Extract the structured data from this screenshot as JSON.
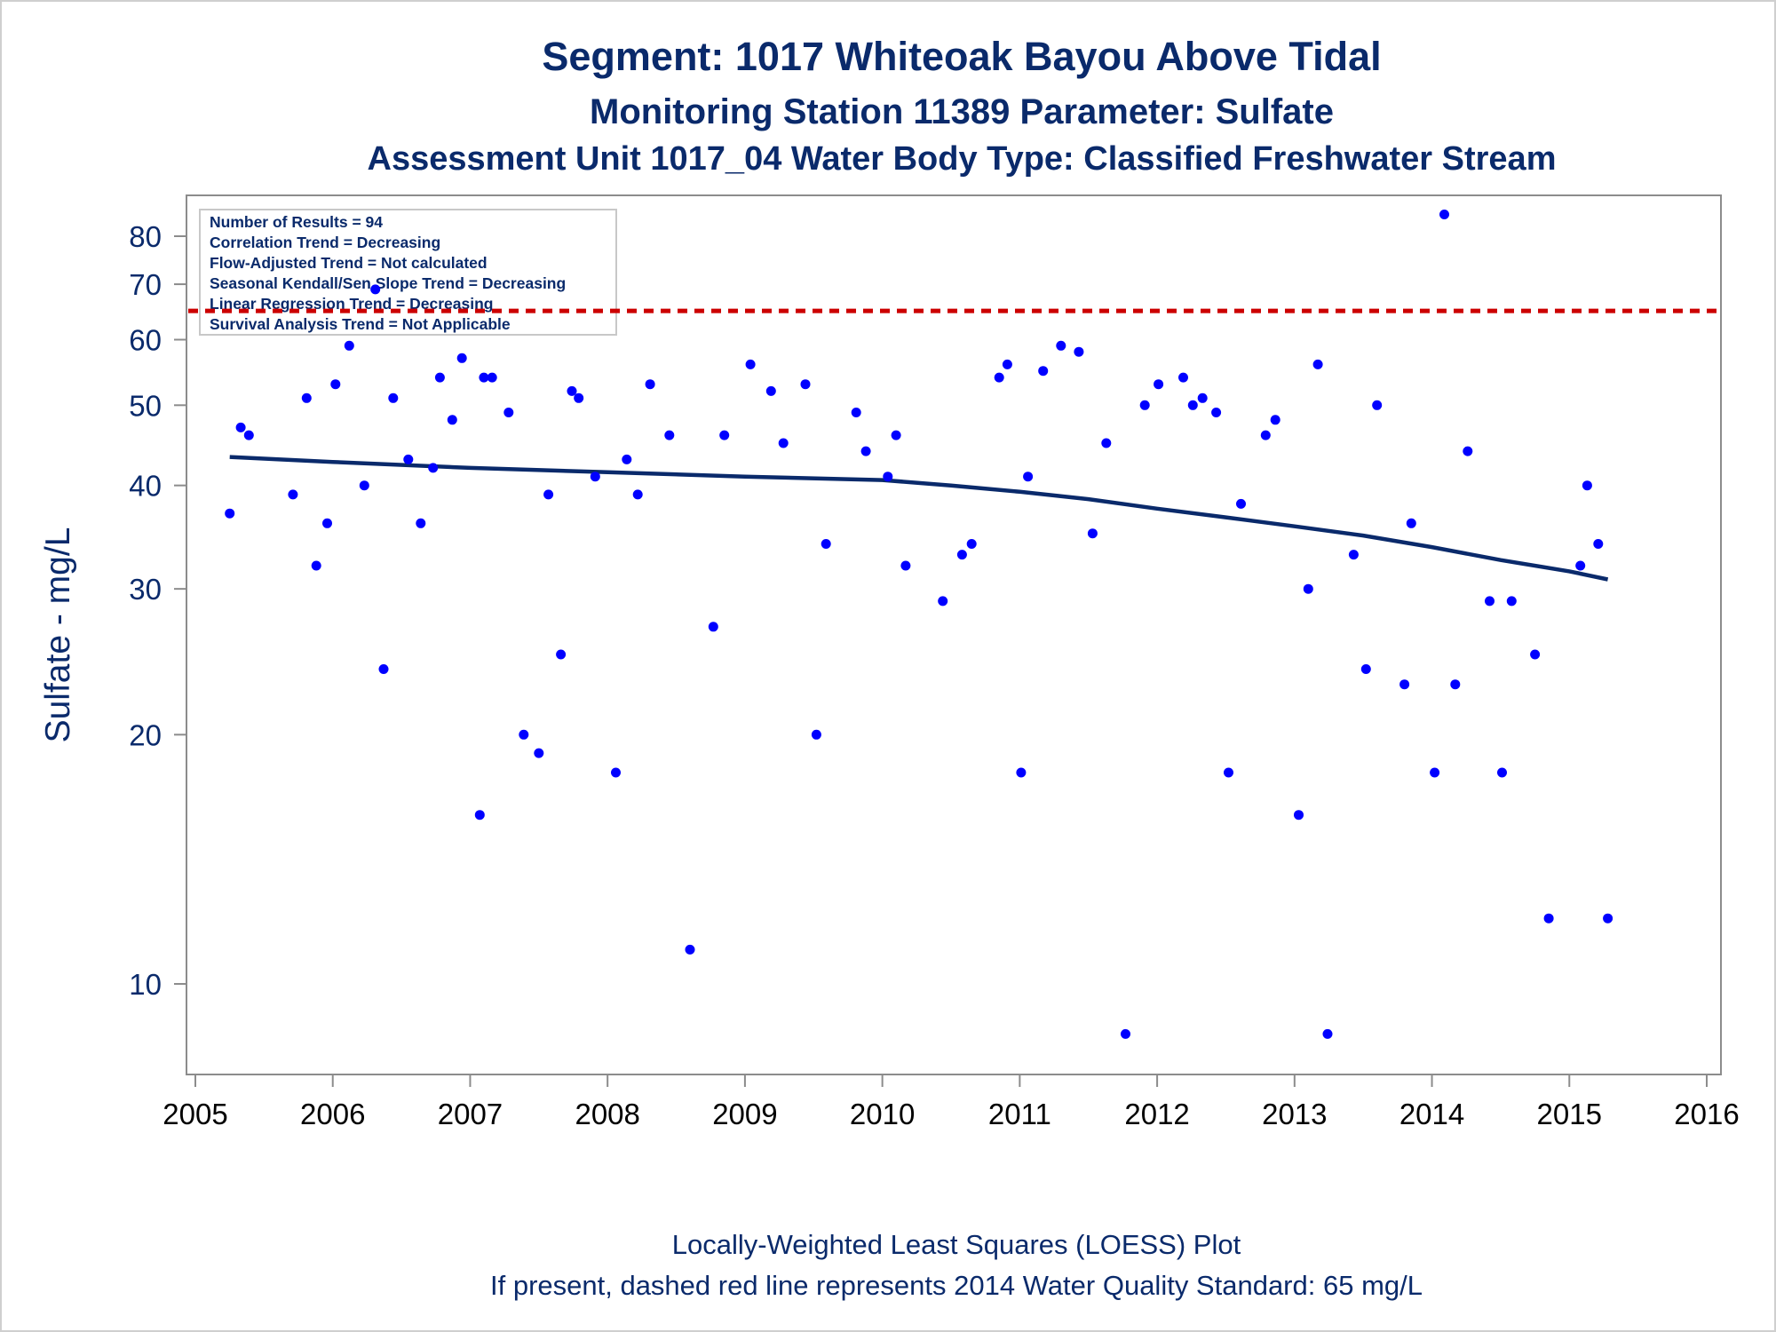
{
  "chart_data": {
    "type": "scatter",
    "title": "Segment: 1017  Whiteoak Bayou Above Tidal",
    "subtitle": "Monitoring Station 11389 Parameter: Sulfate",
    "subtitle2": "Assessment Unit 1017_04   Water Body Type: Classified Freshwater Stream",
    "ylabel": "Sulfate - mg/L",
    "y_scale": "log",
    "ylim": [
      8.5,
      88
    ],
    "xlim": [
      2005,
      2016
    ],
    "y_ticks": [
      10,
      20,
      30,
      40,
      50,
      60,
      70,
      80
    ],
    "y_tick_labels": [
      "10",
      "20",
      "30",
      "40",
      "50",
      "60",
      "70",
      "80"
    ],
    "x_ticks": [
      2005,
      2006,
      2007,
      2008,
      2009,
      2010,
      2011,
      2012,
      2013,
      2014,
      2015,
      2016
    ],
    "x_tick_labels": [
      "2005",
      "2006",
      "2007",
      "2008",
      "2009",
      "2010",
      "2011",
      "2012",
      "2013",
      "2014",
      "2015",
      "2016"
    ],
    "grid": false,
    "stats_box": [
      "Number of Results = 94",
      "Correlation Trend = Decreasing",
      "Flow-Adjusted Trend = Not calculated",
      "Seasonal Kendall/Sen Slope Trend = Decreasing",
      "Linear Regression Trend = Decreasing",
      "Survival Analysis Trend = Not Applicable"
    ],
    "standard_value": 65,
    "footnote1": "Locally-Weighted Least Squares (LOESS) Plot",
    "footnote2": "If present, dashed red line represents 2014 Water Quality Standard: 65    mg/L",
    "colors": {
      "points": "#0000ff",
      "loess": "#0a2a6b",
      "standard": "#cc0000",
      "text": "#0a2a6b"
    },
    "series": [
      {
        "type": "scatter",
        "points": [
          [
            2005.25,
            37
          ],
          [
            2005.33,
            47
          ],
          [
            2005.39,
            46
          ],
          [
            2005.71,
            39
          ],
          [
            2005.81,
            51
          ],
          [
            2005.88,
            32
          ],
          [
            2005.96,
            36
          ],
          [
            2006.02,
            53
          ],
          [
            2006.12,
            59
          ],
          [
            2006.23,
            40
          ],
          [
            2006.31,
            69
          ],
          [
            2006.37,
            24
          ],
          [
            2006.44,
            51
          ],
          [
            2006.55,
            43
          ],
          [
            2006.64,
            36
          ],
          [
            2006.73,
            42
          ],
          [
            2006.78,
            54
          ],
          [
            2006.87,
            48
          ],
          [
            2006.94,
            57
          ],
          [
            2007.07,
            16
          ],
          [
            2007.1,
            54
          ],
          [
            2007.16,
            54
          ],
          [
            2007.28,
            49
          ],
          [
            2007.39,
            20
          ],
          [
            2007.5,
            19
          ],
          [
            2007.57,
            39
          ],
          [
            2007.66,
            25
          ],
          [
            2007.74,
            52
          ],
          [
            2007.79,
            51
          ],
          [
            2007.91,
            41
          ],
          [
            2008.06,
            18
          ],
          [
            2008.14,
            43
          ],
          [
            2008.22,
            39
          ],
          [
            2008.31,
            53
          ],
          [
            2008.45,
            46
          ],
          [
            2008.6,
            11
          ],
          [
            2008.77,
            27
          ],
          [
            2008.85,
            46
          ],
          [
            2009.04,
            56
          ],
          [
            2009.19,
            52
          ],
          [
            2009.28,
            45
          ],
          [
            2009.44,
            53
          ],
          [
            2009.52,
            20
          ],
          [
            2009.59,
            34
          ],
          [
            2009.81,
            49
          ],
          [
            2009.88,
            44
          ],
          [
            2010.04,
            41
          ],
          [
            2010.1,
            46
          ],
          [
            2010.17,
            32
          ],
          [
            2010.44,
            29
          ],
          [
            2010.58,
            33
          ],
          [
            2010.65,
            34
          ],
          [
            2010.85,
            54
          ],
          [
            2010.91,
            56
          ],
          [
            2011.01,
            18
          ],
          [
            2011.06,
            41
          ],
          [
            2011.17,
            55
          ],
          [
            2011.3,
            59
          ],
          [
            2011.43,
            58
          ],
          [
            2011.53,
            35
          ],
          [
            2011.63,
            45
          ],
          [
            2011.77,
            8.7
          ],
          [
            2011.91,
            50
          ],
          [
            2012.01,
            53
          ],
          [
            2012.19,
            54
          ],
          [
            2012.26,
            50
          ],
          [
            2012.33,
            51
          ],
          [
            2012.43,
            49
          ],
          [
            2012.52,
            18
          ],
          [
            2012.61,
            38
          ],
          [
            2012.79,
            46
          ],
          [
            2012.86,
            48
          ],
          [
            2013.03,
            16
          ],
          [
            2013.1,
            30
          ],
          [
            2013.17,
            56
          ],
          [
            2013.24,
            8.7
          ],
          [
            2013.43,
            33
          ],
          [
            2013.52,
            24
          ],
          [
            2013.6,
            50
          ],
          [
            2013.8,
            23
          ],
          [
            2013.85,
            36
          ],
          [
            2014.02,
            18
          ],
          [
            2014.09,
            85
          ],
          [
            2014.17,
            23
          ],
          [
            2014.26,
            44
          ],
          [
            2014.42,
            29
          ],
          [
            2014.51,
            18
          ],
          [
            2014.58,
            29
          ],
          [
            2014.75,
            25
          ],
          [
            2014.85,
            12
          ],
          [
            2015.08,
            32
          ],
          [
            2015.13,
            40
          ],
          [
            2015.21,
            34
          ],
          [
            2015.28,
            12
          ]
        ]
      },
      {
        "type": "line",
        "points": [
          [
            2005.25,
            43.3
          ],
          [
            2006.0,
            42.7
          ],
          [
            2007.0,
            42.0
          ],
          [
            2008.0,
            41.5
          ],
          [
            2009.0,
            41.0
          ],
          [
            2010.0,
            40.6
          ],
          [
            2010.5,
            40.0
          ],
          [
            2011.0,
            39.3
          ],
          [
            2011.5,
            38.5
          ],
          [
            2012.0,
            37.5
          ],
          [
            2012.5,
            36.6
          ],
          [
            2013.0,
            35.7
          ],
          [
            2013.5,
            34.8
          ],
          [
            2014.0,
            33.7
          ],
          [
            2014.5,
            32.5
          ],
          [
            2015.0,
            31.5
          ],
          [
            2015.28,
            30.8
          ]
        ]
      }
    ]
  }
}
